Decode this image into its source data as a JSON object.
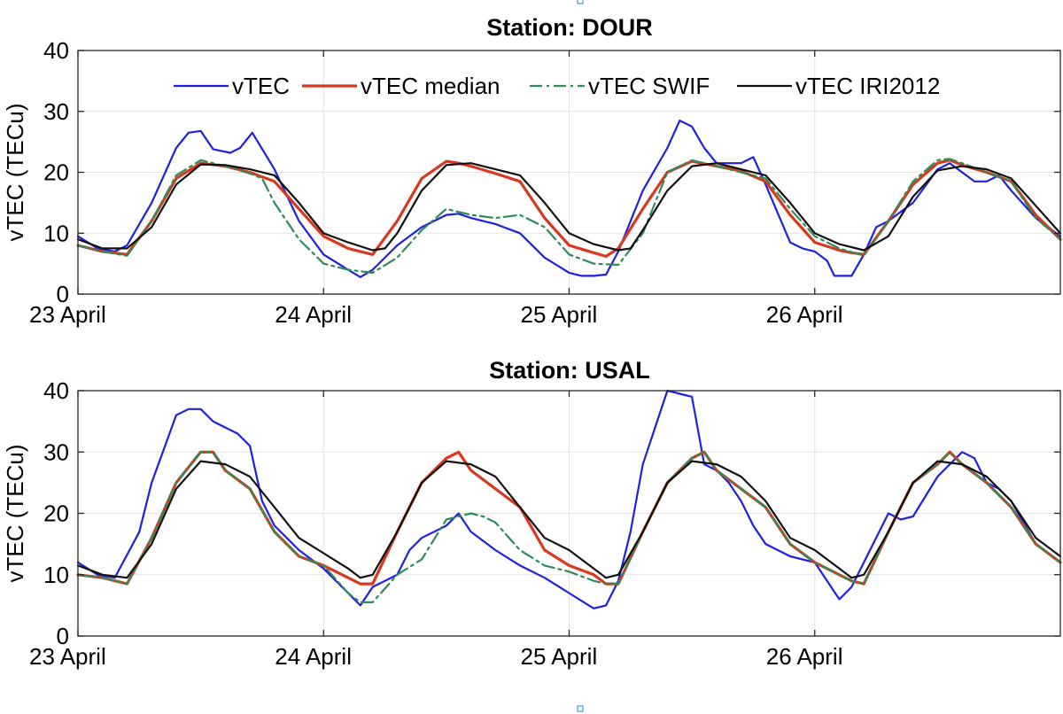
{
  "chart_data": [
    {
      "type": "line",
      "title": "Station: DOUR",
      "xlabel": "",
      "ylabel": "vTEC (TECu)",
      "xticks": [
        "23 April",
        "24 April",
        "25 April",
        "26 April"
      ],
      "xlim": [
        0,
        4
      ],
      "ylim": [
        0,
        40
      ],
      "yticks": [
        0,
        10,
        20,
        30,
        40
      ],
      "grid": true,
      "legend": "top, horizontal",
      "series": [
        {
          "name": "vTEC",
          "color": "#1f1fe6",
          "style": "solid",
          "x": [
            0,
            0.08,
            0.15,
            0.2,
            0.3,
            0.4,
            0.45,
            0.5,
            0.55,
            0.62,
            0.66,
            0.71,
            0.8,
            0.9,
            1.0,
            1.1,
            1.15,
            1.2,
            1.3,
            1.4,
            1.5,
            1.55,
            1.6,
            1.7,
            1.8,
            1.9,
            2.0,
            2.05,
            2.1,
            2.15,
            2.2,
            2.3,
            2.4,
            2.45,
            2.5,
            2.55,
            2.6,
            2.65,
            2.7,
            2.75,
            2.8,
            2.9,
            2.95,
            3.0,
            3.05,
            3.08,
            3.15,
            3.2,
            3.25,
            3.3,
            3.4,
            3.5,
            3.55,
            3.6,
            3.65,
            3.7,
            3.75,
            3.8,
            3.9,
            4.0
          ],
          "y": [
            9.5,
            7.5,
            7,
            8,
            15,
            24,
            26.5,
            26.8,
            23.8,
            23.2,
            24,
            26.5,
            20.5,
            12,
            6.5,
            4,
            2.8,
            4,
            8,
            11,
            13,
            13.2,
            12.5,
            11.5,
            10,
            6,
            3.5,
            3,
            3,
            3.2,
            7,
            17,
            24,
            28.5,
            27.5,
            24,
            21.5,
            21.5,
            21.5,
            22.5,
            18,
            8.5,
            7.5,
            7,
            5.5,
            3,
            3,
            6.5,
            11,
            12,
            15,
            20.5,
            21.5,
            20,
            18.5,
            18.5,
            19.5,
            17,
            12.5,
            9.5
          ]
        },
        {
          "name": "vTEC median",
          "color": "#d9381e",
          "style": "solid",
          "x": [
            0,
            0.1,
            0.2,
            0.3,
            0.4,
            0.5,
            0.6,
            0.7,
            0.8,
            0.9,
            1.0,
            1.1,
            1.15,
            1.2,
            1.3,
            1.4,
            1.5,
            1.55,
            1.6,
            1.7,
            1.8,
            1.9,
            2.0,
            2.1,
            2.15,
            2.2,
            2.3,
            2.4,
            2.5,
            2.6,
            2.7,
            2.8,
            2.9,
            3.0,
            3.1,
            3.15,
            3.2,
            3.3,
            3.4,
            3.5,
            3.55,
            3.6,
            3.7,
            3.8,
            3.9,
            4.0
          ],
          "y": [
            8,
            7,
            6.5,
            12,
            19,
            21.5,
            21,
            20,
            18.5,
            14,
            9.5,
            7.5,
            7,
            6.5,
            12,
            19,
            21.8,
            21.5,
            21,
            19.8,
            18.5,
            12.5,
            8,
            6.8,
            6.2,
            7.5,
            14,
            20,
            21.8,
            21,
            20.2,
            18.5,
            13,
            8.5,
            7.2,
            6.8,
            6.5,
            12,
            18,
            21.5,
            22,
            21.2,
            20,
            18.5,
            13,
            9
          ]
        },
        {
          "name": "vTEC SWIF",
          "color": "#2e8b57",
          "style": "dashdot",
          "x": [
            0,
            0.1,
            0.2,
            0.3,
            0.4,
            0.5,
            0.6,
            0.7,
            0.75,
            0.8,
            0.9,
            1.0,
            1.1,
            1.2,
            1.3,
            1.4,
            1.5,
            1.6,
            1.7,
            1.8,
            1.9,
            2.0,
            2.1,
            2.2,
            2.3,
            2.4,
            2.5,
            2.6,
            2.7,
            2.8,
            2.9,
            3.0,
            3.1,
            3.2,
            3.3,
            3.4,
            3.5,
            3.55,
            3.6,
            3.7,
            3.8,
            3.9,
            4.0
          ],
          "y": [
            8,
            7,
            6.3,
            12,
            19.5,
            22,
            21,
            19.8,
            19,
            15,
            9,
            5,
            4,
            3.5,
            6,
            10.5,
            14,
            13,
            12.5,
            13,
            11,
            6.5,
            5,
            4.8,
            10,
            20,
            22,
            21,
            20,
            19,
            14,
            9.5,
            7.5,
            6.3,
            12,
            18.5,
            22,
            22.2,
            21.5,
            20,
            18.5,
            12.5,
            9
          ]
        },
        {
          "name": "vTEC IRI2012",
          "color": "#111111",
          "style": "solid",
          "x": [
            0,
            0.1,
            0.2,
            0.3,
            0.4,
            0.5,
            0.6,
            0.7,
            0.8,
            0.9,
            1.0,
            1.1,
            1.2,
            1.25,
            1.3,
            1.4,
            1.5,
            1.6,
            1.7,
            1.8,
            1.9,
            2.0,
            2.1,
            2.2,
            2.25,
            2.3,
            2.4,
            2.5,
            2.6,
            2.7,
            2.8,
            2.9,
            3.0,
            3.1,
            3.2,
            3.3,
            3.4,
            3.5,
            3.6,
            3.7,
            3.8,
            3.9,
            4.0
          ],
          "y": [
            9,
            7.5,
            7.5,
            11,
            18,
            21.3,
            21.2,
            20.5,
            19.5,
            15,
            10,
            8.5,
            7.2,
            7.5,
            10,
            17,
            21.2,
            21.5,
            20.5,
            19.5,
            15,
            10,
            8.2,
            7.2,
            7.5,
            10.5,
            17,
            21,
            21.5,
            20.5,
            19.5,
            15,
            10,
            8.2,
            7.2,
            9.5,
            16,
            20.3,
            21,
            20.5,
            19,
            14.5,
            10
          ]
        }
      ]
    },
    {
      "type": "line",
      "title": "Station: USAL",
      "xlabel": "",
      "ylabel": "vTEC (TECu)",
      "xticks": [
        "23 April",
        "24 April",
        "25 April",
        "26 April"
      ],
      "xlim": [
        0,
        4
      ],
      "ylim": [
        0,
        40
      ],
      "yticks": [
        0,
        10,
        20,
        30,
        40
      ],
      "grid": true,
      "series": [
        {
          "name": "vTEC",
          "color": "#1f1fe6",
          "style": "solid",
          "x": [
            0,
            0.08,
            0.15,
            0.25,
            0.3,
            0.4,
            0.45,
            0.5,
            0.55,
            0.6,
            0.65,
            0.7,
            0.75,
            0.8,
            0.85,
            0.9,
            1.0,
            1.1,
            1.15,
            1.2,
            1.3,
            1.35,
            1.4,
            1.5,
            1.55,
            1.6,
            1.7,
            1.8,
            1.9,
            2.0,
            2.1,
            2.15,
            2.2,
            2.25,
            2.3,
            2.4,
            2.45,
            2.5,
            2.55,
            2.6,
            2.65,
            2.7,
            2.75,
            2.8,
            2.9,
            3.0,
            3.1,
            3.15,
            3.2,
            3.3,
            3.35,
            3.4,
            3.5,
            3.55,
            3.6,
            3.65,
            3.7,
            3.75,
            3.8,
            3.9,
            4.0
          ],
          "y": [
            12,
            10,
            9.5,
            17,
            25,
            36,
            37,
            37,
            35,
            34,
            33,
            31,
            22,
            18,
            16,
            14,
            11,
            7,
            5,
            8,
            10,
            14,
            16,
            18,
            20,
            17,
            14,
            11.5,
            9.5,
            7,
            4.5,
            5,
            9,
            17,
            28,
            40,
            39.5,
            39,
            28,
            27,
            25,
            22,
            18,
            15,
            13,
            12,
            6,
            8,
            12,
            20,
            19,
            19.5,
            26,
            28,
            30,
            29,
            25,
            24,
            22,
            15,
            12
          ]
        },
        {
          "name": "vTEC median",
          "color": "#d9381e",
          "style": "solid",
          "x": [
            0,
            0.1,
            0.2,
            0.3,
            0.4,
            0.5,
            0.55,
            0.6,
            0.7,
            0.8,
            0.9,
            1.0,
            1.1,
            1.15,
            1.2,
            1.3,
            1.4,
            1.5,
            1.55,
            1.6,
            1.7,
            1.8,
            1.9,
            2.0,
            2.1,
            2.15,
            2.2,
            2.3,
            2.4,
            2.5,
            2.55,
            2.6,
            2.7,
            2.8,
            2.9,
            3.0,
            3.1,
            3.15,
            3.2,
            3.3,
            3.4,
            3.5,
            3.55,
            3.6,
            3.7,
            3.8,
            3.9,
            4.0
          ],
          "y": [
            10,
            9.5,
            8.5,
            16,
            25,
            30,
            30,
            27,
            24,
            17,
            13,
            11.5,
            9.5,
            8.5,
            8.5,
            17,
            25,
            29,
            30,
            27,
            24,
            21,
            14,
            11.5,
            10,
            8.5,
            8.5,
            17,
            25,
            29,
            30,
            27,
            24,
            21,
            15,
            12,
            10,
            9,
            8.5,
            17,
            25,
            28,
            30,
            28,
            25,
            21,
            15,
            12
          ]
        },
        {
          "name": "vTEC SWIF",
          "color": "#2e8b57",
          "style": "dashdot",
          "x": [
            0,
            0.1,
            0.2,
            0.3,
            0.4,
            0.5,
            0.55,
            0.6,
            0.7,
            0.8,
            0.9,
            1.0,
            1.1,
            1.15,
            1.2,
            1.3,
            1.4,
            1.5,
            1.55,
            1.6,
            1.65,
            1.7,
            1.8,
            1.9,
            2.0,
            2.1,
            2.15,
            2.2,
            2.3,
            2.4,
            2.5,
            2.55,
            2.6,
            2.7,
            2.8,
            2.9,
            3.0,
            3.1,
            3.15,
            3.2,
            3.3,
            3.4,
            3.5,
            3.55,
            3.6,
            3.7,
            3.8,
            3.9,
            4.0
          ],
          "y": [
            10,
            9.5,
            8.5,
            16,
            25,
            30,
            30,
            27,
            24,
            17,
            13,
            11.5,
            7,
            5.5,
            5.5,
            10,
            12.5,
            19,
            19.5,
            20,
            19.5,
            18.5,
            14,
            11.5,
            10.5,
            9,
            8.5,
            8.5,
            17,
            25,
            29,
            30,
            27,
            24,
            21,
            15,
            12,
            10,
            9,
            8.5,
            17,
            25,
            28,
            30,
            28,
            25,
            21,
            15,
            12
          ]
        },
        {
          "name": "vTEC IRI2012",
          "color": "#111111",
          "style": "solid",
          "x": [
            0,
            0.1,
            0.2,
            0.3,
            0.4,
            0.5,
            0.6,
            0.7,
            0.8,
            0.9,
            1.0,
            1.1,
            1.15,
            1.2,
            1.3,
            1.4,
            1.5,
            1.6,
            1.7,
            1.8,
            1.9,
            2.0,
            2.1,
            2.15,
            2.2,
            2.3,
            2.4,
            2.5,
            2.6,
            2.7,
            2.8,
            2.9,
            3.0,
            3.1,
            3.15,
            3.2,
            3.3,
            3.4,
            3.5,
            3.6,
            3.7,
            3.8,
            3.9,
            4.0
          ],
          "y": [
            11.5,
            10,
            9.5,
            15,
            24,
            28.5,
            28,
            26,
            21,
            16,
            13.5,
            11,
            9.5,
            10,
            17,
            25,
            28.5,
            28,
            26,
            21,
            16,
            14,
            11,
            9.5,
            10,
            17,
            25,
            28.5,
            28,
            26,
            22,
            16,
            14,
            11,
            9.5,
            10,
            17,
            25,
            28.5,
            28,
            26,
            22,
            16,
            13
          ]
        }
      ]
    }
  ]
}
